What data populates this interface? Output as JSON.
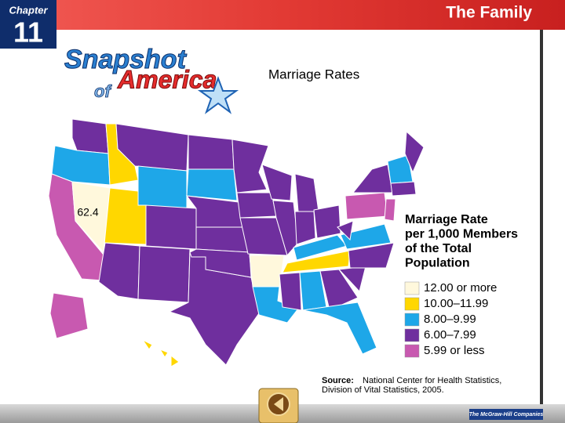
{
  "header": {
    "chapter_label": "Chapter",
    "chapter_number": "11",
    "chapter_title": "The Family"
  },
  "feature": {
    "logo_line1": "Snapshot",
    "logo_line2": "of",
    "logo_line3": "America",
    "title": "Marriage Rates"
  },
  "map": {
    "annotation": "62.4",
    "legend": {
      "title_lines": [
        "Marriage Rate",
        "per 1,000 Members",
        "of the Total",
        "Population"
      ],
      "items": [
        {
          "label": "12.00 or more",
          "color": "#fff8dc"
        },
        {
          "label": "10.00–11.99",
          "color": "#ffd700"
        },
        {
          "label": "8.00–9.99",
          "color": "#1ea7e8"
        },
        {
          "label": "6.00–7.99",
          "color": "#6f2f9e"
        },
        {
          "label": "5.99 or less",
          "color": "#c859b0"
        }
      ]
    }
  },
  "source": {
    "label": "Source:",
    "line1": "National Center for Health Statistics,",
    "line2": "Division of Vital Statistics, 2005."
  },
  "footer": {
    "publisher": "The McGraw-Hill Companies"
  }
}
